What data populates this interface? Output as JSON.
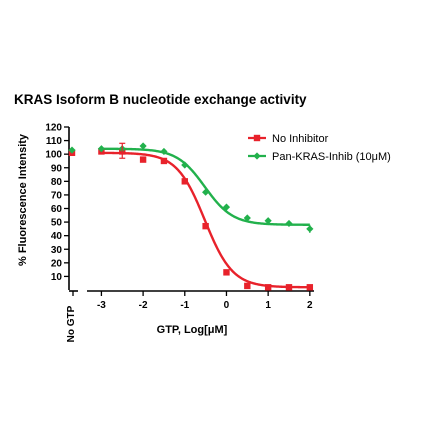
{
  "chart_data": {
    "type": "line",
    "title": "KRAS Isoform B nucleotide exchange activity",
    "xlabel": "GTP, Log[μM]",
    "ylabel": "% Fluorescence Intensity",
    "xlim": [
      -3.25,
      2.1
    ],
    "ylim": [
      0,
      120
    ],
    "x_ticks": [
      -3,
      -2,
      -1,
      0,
      1,
      2
    ],
    "x_tick_labels": [
      "-3",
      "-2",
      "-1",
      "0",
      "1",
      "2"
    ],
    "y_ticks": [
      10,
      20,
      30,
      40,
      50,
      60,
      70,
      80,
      90,
      100,
      110,
      120
    ],
    "y_tick_labels": [
      "10",
      "20",
      "30",
      "40",
      "50",
      "60",
      "70",
      "80",
      "90",
      "100",
      "110",
      "120"
    ],
    "left_panel_label": "No GTP",
    "legend_position": "top-right",
    "grid": false,
    "series": [
      {
        "name": "No Inhibitor",
        "color": "#e8222b",
        "marker": "square",
        "x": [
          -3,
          -2.5,
          -2,
          -1.5,
          -1,
          -0.5,
          0,
          0.5,
          1,
          1.5,
          2
        ],
        "y": [
          102,
          102,
          96,
          95,
          80,
          47,
          13,
          3,
          2,
          2,
          2
        ],
        "no_gtp_value": 101,
        "fit": {
          "top": 101,
          "bottom": 2,
          "log_ic50": -0.52,
          "hill": -1.3
        }
      },
      {
        "name": "Pan-KRAS-Inhib (10μM)",
        "color": "#22b14c",
        "marker": "diamond",
        "x": [
          -3,
          -2.5,
          -2,
          -1.5,
          -1,
          -0.5,
          0,
          0.5,
          1,
          1.5,
          2
        ],
        "y": [
          104,
          104,
          106,
          102,
          92,
          72,
          61,
          53,
          51,
          49,
          45
        ],
        "no_gtp_value": 103,
        "fit": {
          "top": 104,
          "bottom": 48,
          "log_ic50": -0.52,
          "hill": -1.3
        }
      }
    ]
  }
}
